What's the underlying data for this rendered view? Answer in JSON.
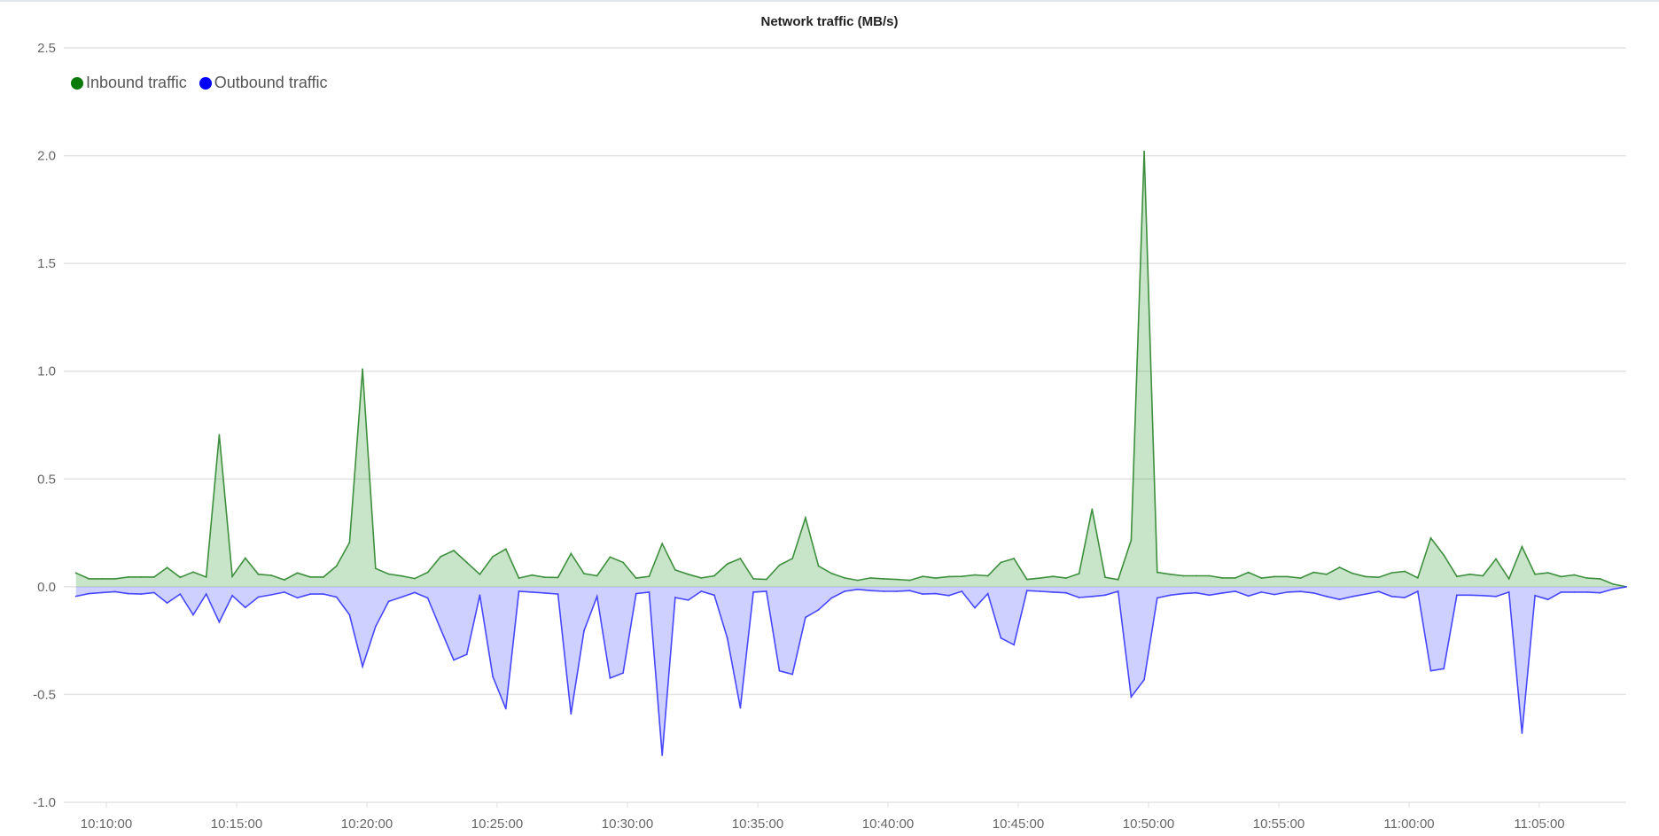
{
  "chart_data": {
    "type": "area",
    "title": "Network traffic (MB/s)",
    "xlabel": "",
    "ylabel": "",
    "ylim": [
      -1.0,
      2.5
    ],
    "yticks": [
      "2.5",
      "2.0",
      "1.5",
      "1.0",
      "0.5",
      "0.0",
      "-0.5",
      "-1.0"
    ],
    "xticks": [
      "10:10:00",
      "10:15:00",
      "10:20:00",
      "10:25:00",
      "10:30:00",
      "10:35:00",
      "10:40:00",
      "10:45:00",
      "10:50:00",
      "10:55:00",
      "11:00:00",
      "11:05:00"
    ],
    "grid": true,
    "legend_position": "top-left",
    "x": [
      "10:08:50",
      "10:09:20",
      "10:09:50",
      "10:10:20",
      "10:10:50",
      "10:11:20",
      "10:11:50",
      "10:12:20",
      "10:12:50",
      "10:13:20",
      "10:13:50",
      "10:14:20",
      "10:14:50",
      "10:15:20",
      "10:15:50",
      "10:16:20",
      "10:16:50",
      "10:17:20",
      "10:17:50",
      "10:18:20",
      "10:18:50",
      "10:19:20",
      "10:19:50",
      "10:20:20",
      "10:20:50",
      "10:21:20",
      "10:21:50",
      "10:22:20",
      "10:22:50",
      "10:23:20",
      "10:23:50",
      "10:24:20",
      "10:24:50",
      "10:25:20",
      "10:25:50",
      "10:26:20",
      "10:26:50",
      "10:27:20",
      "10:27:50",
      "10:28:20",
      "10:28:50",
      "10:29:20",
      "10:29:50",
      "10:30:20",
      "10:30:50",
      "10:31:20",
      "10:31:50",
      "10:32:20",
      "10:32:50",
      "10:33:20",
      "10:33:50",
      "10:34:20",
      "10:34:50",
      "10:35:20",
      "10:35:50",
      "10:36:20",
      "10:36:50",
      "10:37:20",
      "10:37:50",
      "10:38:20",
      "10:38:50",
      "10:39:20",
      "10:39:50",
      "10:40:20",
      "10:40:50",
      "10:41:20",
      "10:41:50",
      "10:42:20",
      "10:42:50",
      "10:43:20",
      "10:43:50",
      "10:44:20",
      "10:44:50",
      "10:45:20",
      "10:45:50",
      "10:46:20",
      "10:46:50",
      "10:47:20",
      "10:47:50",
      "10:48:20",
      "10:48:50",
      "10:49:20",
      "10:49:50",
      "10:50:20",
      "10:50:50",
      "10:51:20",
      "10:51:50",
      "10:52:20",
      "10:52:50",
      "10:53:20",
      "10:53:50",
      "10:54:20",
      "10:54:50",
      "10:55:20",
      "10:55:50",
      "10:56:20",
      "10:56:50",
      "10:57:20",
      "10:57:50",
      "10:58:20",
      "10:58:50",
      "10:59:20",
      "10:59:50",
      "11:00:20",
      "11:00:50",
      "11:01:20",
      "11:01:50",
      "11:02:20",
      "11:02:50",
      "11:03:20",
      "11:03:50",
      "11:04:20",
      "11:04:50",
      "11:05:20",
      "11:05:50",
      "11:06:20",
      "11:06:50",
      "11:07:20",
      "11:07:50",
      "11:08:20"
    ],
    "series": [
      {
        "name": "Inbound traffic",
        "color": "#0a7a0a",
        "values": [
          0.064,
          0.037,
          0.037,
          0.037,
          0.045,
          0.045,
          0.045,
          0.089,
          0.044,
          0.068,
          0.045,
          0.705,
          0.048,
          0.133,
          0.058,
          0.053,
          0.032,
          0.064,
          0.045,
          0.045,
          0.096,
          0.205,
          1.01,
          0.085,
          0.059,
          0.05,
          0.038,
          0.067,
          0.14,
          0.168,
          0.113,
          0.058,
          0.14,
          0.175,
          0.04,
          0.054,
          0.044,
          0.043,
          0.154,
          0.061,
          0.051,
          0.138,
          0.113,
          0.04,
          0.048,
          0.2,
          0.078,
          0.058,
          0.041,
          0.051,
          0.106,
          0.131,
          0.037,
          0.034,
          0.1,
          0.131,
          0.32,
          0.096,
          0.062,
          0.041,
          0.03,
          0.041,
          0.037,
          0.034,
          0.03,
          0.048,
          0.04,
          0.047,
          0.048,
          0.055,
          0.051,
          0.113,
          0.131,
          0.034,
          0.04,
          0.048,
          0.04,
          0.061,
          0.36,
          0.044,
          0.033,
          0.216,
          2.02,
          0.067,
          0.058,
          0.051,
          0.051,
          0.051,
          0.041,
          0.041,
          0.067,
          0.04,
          0.047,
          0.047,
          0.04,
          0.067,
          0.058,
          0.09,
          0.062,
          0.047,
          0.044,
          0.065,
          0.072,
          0.041,
          0.226,
          0.147,
          0.048,
          0.058,
          0.051,
          0.129,
          0.037,
          0.186,
          0.058,
          0.065,
          0.047,
          0.055,
          0.04,
          0.037,
          0.012,
          0
        ]
      },
      {
        "name": "Outbound traffic",
        "color": "#0000ff",
        "values": [
          -0.044,
          -0.032,
          -0.027,
          -0.023,
          -0.032,
          -0.034,
          -0.027,
          -0.075,
          -0.034,
          -0.13,
          -0.034,
          -0.164,
          -0.041,
          -0.096,
          -0.048,
          -0.037,
          -0.025,
          -0.051,
          -0.034,
          -0.034,
          -0.048,
          -0.13,
          -0.37,
          -0.185,
          -0.068,
          -0.048,
          -0.027,
          -0.052,
          -0.197,
          -0.34,
          -0.314,
          -0.039,
          -0.417,
          -0.566,
          -0.021,
          -0.025,
          -0.029,
          -0.034,
          -0.59,
          -0.204,
          -0.045,
          -0.424,
          -0.4,
          -0.032,
          -0.025,
          -0.782,
          -0.05,
          -0.062,
          -0.021,
          -0.039,
          -0.238,
          -0.562,
          -0.025,
          -0.021,
          -0.39,
          -0.406,
          -0.142,
          -0.107,
          -0.052,
          -0.021,
          -0.012,
          -0.018,
          -0.021,
          -0.021,
          -0.018,
          -0.034,
          -0.032,
          -0.041,
          -0.021,
          -0.098,
          -0.032,
          -0.238,
          -0.269,
          -0.018,
          -0.021,
          -0.025,
          -0.028,
          -0.05,
          -0.045,
          -0.039,
          -0.021,
          -0.511,
          -0.431,
          -0.052,
          -0.039,
          -0.032,
          -0.028,
          -0.039,
          -0.029,
          -0.021,
          -0.043,
          -0.025,
          -0.036,
          -0.025,
          -0.022,
          -0.029,
          -0.045,
          -0.059,
          -0.045,
          -0.034,
          -0.022,
          -0.045,
          -0.05,
          -0.021,
          -0.39,
          -0.38,
          -0.039,
          -0.039,
          -0.041,
          -0.045,
          -0.025,
          -0.679,
          -0.041,
          -0.059,
          -0.025,
          -0.025,
          -0.025,
          -0.028,
          -0.011,
          0
        ]
      }
    ]
  }
}
